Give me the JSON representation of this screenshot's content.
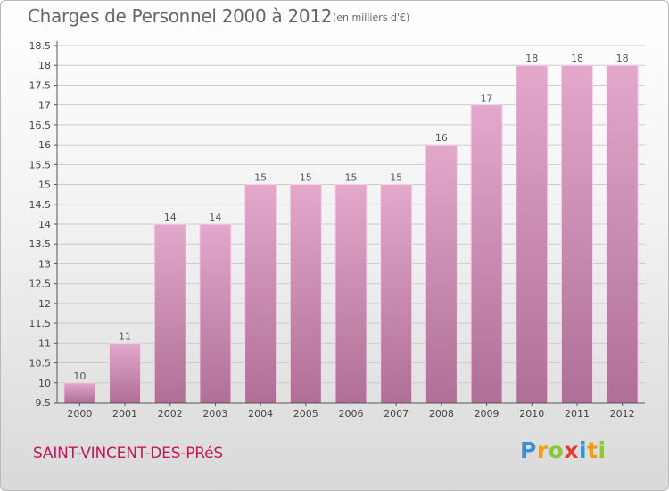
{
  "header": {
    "title": "Charges de Personnel 2000 à 2012",
    "subtitle": "(en milliers d'€)"
  },
  "footer": {
    "town": "SAINT-VINCENT-DES-PRéS"
  },
  "logo": {
    "text": "Proxiti",
    "letters": [
      {
        "ch": "P",
        "color": "#3b8fd6"
      },
      {
        "ch": "r",
        "color": "#f29a1a"
      },
      {
        "ch": "o",
        "color": "#8cc63f"
      },
      {
        "ch": "x",
        "color": "#e53935"
      },
      {
        "ch": "i",
        "color": "#3b8fd6"
      },
      {
        "ch": "t",
        "color": "#f29a1a"
      },
      {
        "ch": "i",
        "color": "#8cc63f"
      }
    ]
  },
  "colors": {
    "bar_top": "#e3a8cc",
    "bar_bottom": "#b06f96",
    "axis": "#555555",
    "grid": "#cccccc"
  },
  "chart_data": {
    "type": "bar",
    "title": "Charges de Personnel 2000 à 2012",
    "subtitle": "(en milliers d'€)",
    "categories": [
      "2000",
      "2001",
      "2002",
      "2003",
      "2004",
      "2005",
      "2006",
      "2007",
      "2008",
      "2009",
      "2010",
      "2011",
      "2012"
    ],
    "values": [
      10,
      11,
      14,
      14,
      15,
      15,
      15,
      15,
      16,
      17,
      18,
      18,
      18
    ],
    "data_labels": [
      "10",
      "11",
      "14",
      "14",
      "15",
      "15",
      "15",
      "15",
      "16",
      "17",
      "18",
      "18",
      "18"
    ],
    "ylim": [
      9.5,
      18.5
    ],
    "yticks": [
      9.5,
      10,
      10.5,
      11,
      11.5,
      12,
      12.5,
      13,
      13.5,
      14,
      14.5,
      15,
      15.5,
      16,
      16.5,
      17,
      17.5,
      18,
      18.5
    ],
    "ytick_labels": [
      "9.5",
      "10",
      "10.5",
      "11",
      "11.5",
      "12",
      "12.5",
      "13",
      "13.5",
      "14",
      "14.5",
      "15",
      "15.5",
      "16",
      "16.5",
      "17",
      "17.5",
      "18",
      "18.5"
    ],
    "grid": true,
    "legend": "none"
  }
}
